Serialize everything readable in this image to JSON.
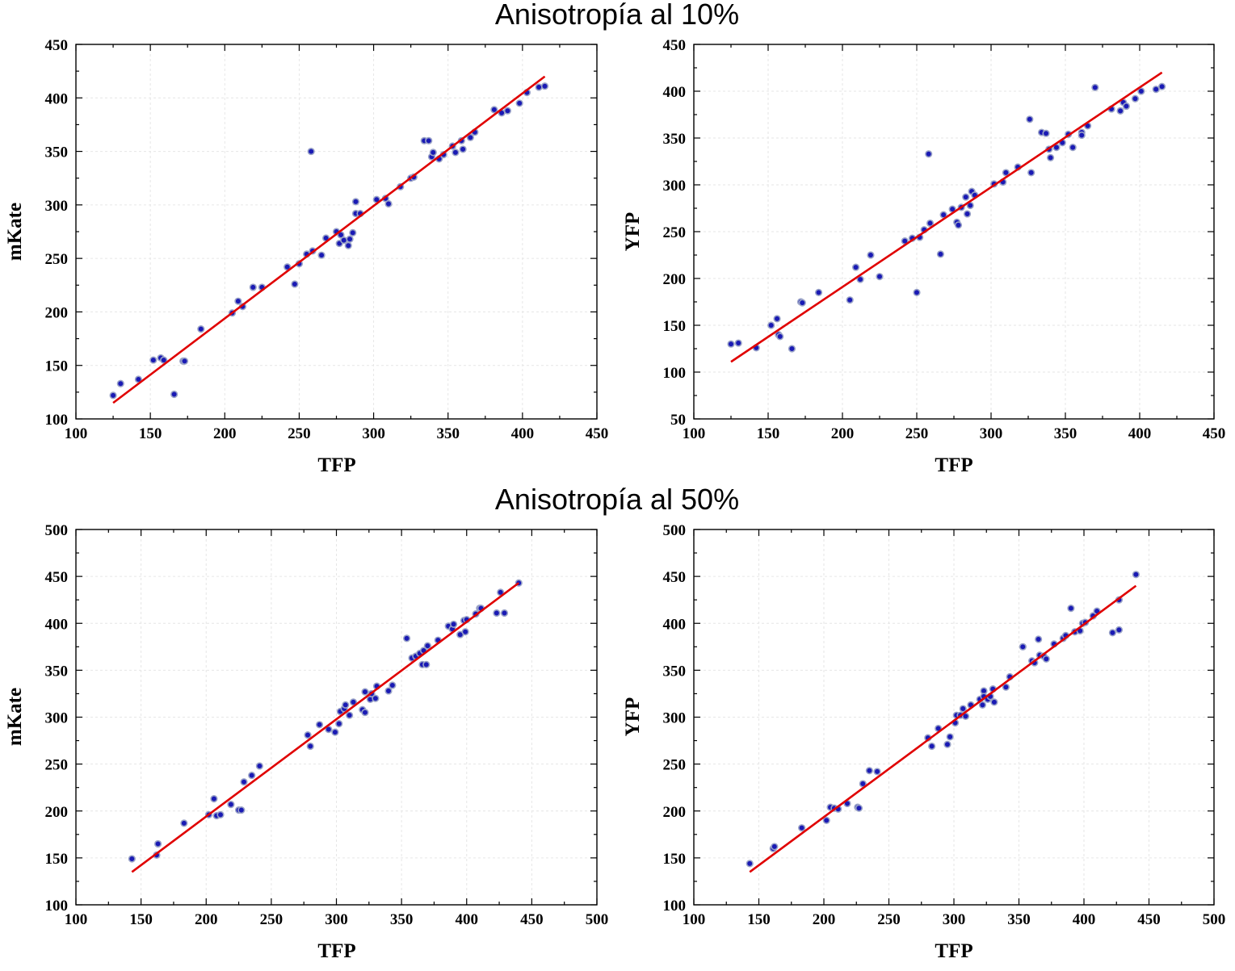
{
  "titles": [
    "Anisotropía al 10%",
    "Anisotropía al 50%"
  ],
  "colors": {
    "points": "#1a1ab4",
    "fit_line": "#e00000",
    "frame": "#000000",
    "grid": "#e6e6e6"
  },
  "chart_data": [
    {
      "type": "scatter",
      "group_title": "Anisotropía al 10%",
      "xlabel": "TFP",
      "ylabel": "mKate",
      "xlim": [
        100,
        450
      ],
      "ylim": [
        100,
        450
      ],
      "xticks": [
        100,
        150,
        200,
        250,
        300,
        350,
        400,
        450
      ],
      "yticks": [
        100,
        150,
        200,
        250,
        300,
        350,
        400,
        450
      ],
      "grid": true,
      "fit_line": {
        "x": [
          125,
          415
        ],
        "y": [
          115,
          420
        ]
      },
      "points": [
        [
          125,
          122
        ],
        [
          130,
          133
        ],
        [
          142,
          137
        ],
        [
          152,
          155
        ],
        [
          157,
          157
        ],
        [
          159,
          155
        ],
        [
          166,
          123
        ],
        [
          172,
          154
        ],
        [
          173,
          154
        ],
        [
          184,
          184
        ],
        [
          205,
          199
        ],
        [
          209,
          210
        ],
        [
          212,
          205
        ],
        [
          219,
          223
        ],
        [
          225,
          223
        ],
        [
          242,
          242
        ],
        [
          247,
          226
        ],
        [
          250,
          245
        ],
        [
          255,
          254
        ],
        [
          258,
          350
        ],
        [
          259,
          257
        ],
        [
          265,
          253
        ],
        [
          268,
          269
        ],
        [
          275,
          275
        ],
        [
          277,
          264
        ],
        [
          278,
          272
        ],
        [
          280,
          267
        ],
        [
          283,
          262
        ],
        [
          284,
          268
        ],
        [
          286,
          274
        ],
        [
          288,
          303
        ],
        [
          288,
          292
        ],
        [
          291,
          292
        ],
        [
          302,
          305
        ],
        [
          308,
          306
        ],
        [
          310,
          301
        ],
        [
          318,
          317
        ],
        [
          325,
          325
        ],
        [
          327,
          326
        ],
        [
          334,
          360
        ],
        [
          337,
          360
        ],
        [
          339,
          345
        ],
        [
          340,
          349
        ],
        [
          344,
          343
        ],
        [
          347,
          347
        ],
        [
          353,
          355
        ],
        [
          355,
          349
        ],
        [
          359,
          360
        ],
        [
          360,
          352
        ],
        [
          365,
          363
        ],
        [
          368,
          368
        ],
        [
          381,
          389
        ],
        [
          386,
          386
        ],
        [
          390,
          388
        ],
        [
          398,
          395
        ],
        [
          403,
          405
        ],
        [
          411,
          410
        ],
        [
          415,
          411
        ]
      ]
    },
    {
      "type": "scatter",
      "group_title": "Anisotropía al 10%",
      "xlabel": "TFP",
      "ylabel": "YFP",
      "xlim": [
        100,
        450
      ],
      "ylim": [
        50,
        450
      ],
      "xticks": [
        100,
        150,
        200,
        250,
        300,
        350,
        400,
        450
      ],
      "yticks": [
        50,
        100,
        150,
        200,
        250,
        300,
        350,
        400,
        450
      ],
      "grid": true,
      "fit_line": {
        "x": [
          125,
          415
        ],
        "y": [
          111,
          420
        ]
      },
      "points": [
        [
          125,
          130
        ],
        [
          130,
          131
        ],
        [
          142,
          126
        ],
        [
          152,
          150
        ],
        [
          156,
          157
        ],
        [
          157,
          140
        ],
        [
          158,
          138
        ],
        [
          166,
          125
        ],
        [
          172,
          175
        ],
        [
          173,
          174
        ],
        [
          184,
          185
        ],
        [
          205,
          177
        ],
        [
          209,
          212
        ],
        [
          212,
          199
        ],
        [
          219,
          225
        ],
        [
          225,
          202
        ],
        [
          242,
          240
        ],
        [
          247,
          243
        ],
        [
          250,
          185
        ],
        [
          252,
          244
        ],
        [
          255,
          252
        ],
        [
          258,
          333
        ],
        [
          259,
          259
        ],
        [
          266,
          226
        ],
        [
          268,
          268
        ],
        [
          274,
          274
        ],
        [
          277,
          260
        ],
        [
          278,
          257
        ],
        [
          280,
          276
        ],
        [
          283,
          287
        ],
        [
          284,
          269
        ],
        [
          286,
          278
        ],
        [
          287,
          293
        ],
        [
          289,
          289
        ],
        [
          302,
          301
        ],
        [
          308,
          303
        ],
        [
          310,
          313
        ],
        [
          318,
          319
        ],
        [
          326,
          370
        ],
        [
          327,
          313
        ],
        [
          334,
          356
        ],
        [
          337,
          355
        ],
        [
          339,
          338
        ],
        [
          340,
          329
        ],
        [
          344,
          340
        ],
        [
          348,
          345
        ],
        [
          352,
          354
        ],
        [
          355,
          340
        ],
        [
          361,
          356
        ],
        [
          361,
          353
        ],
        [
          365,
          363
        ],
        [
          370,
          404
        ],
        [
          381,
          381
        ],
        [
          387,
          379
        ],
        [
          389,
          388
        ],
        [
          391,
          384
        ],
        [
          397,
          392
        ],
        [
          401,
          400
        ],
        [
          411,
          402
        ],
        [
          415,
          405
        ]
      ]
    },
    {
      "type": "scatter",
      "group_title": "Anisotropía al 50%",
      "xlabel": "TFP",
      "ylabel": "mKate",
      "xlim": [
        100,
        500
      ],
      "ylim": [
        100,
        500
      ],
      "xticks": [
        100,
        150,
        200,
        250,
        300,
        350,
        400,
        450,
        500
      ],
      "yticks": [
        100,
        150,
        200,
        250,
        300,
        350,
        400,
        450,
        500
      ],
      "grid": true,
      "fit_line": {
        "x": [
          143,
          440
        ],
        "y": [
          135,
          443
        ]
      },
      "points": [
        [
          143,
          149
        ],
        [
          162,
          153
        ],
        [
          163,
          165
        ],
        [
          183,
          187
        ],
        [
          202,
          196
        ],
        [
          206,
          213
        ],
        [
          208,
          195
        ],
        [
          211,
          196
        ],
        [
          219,
          207
        ],
        [
          225,
          201
        ],
        [
          227,
          201
        ],
        [
          229,
          231
        ],
        [
          235,
          238
        ],
        [
          241,
          248
        ],
        [
          278,
          281
        ],
        [
          280,
          269
        ],
        [
          287,
          292
        ],
        [
          294,
          287
        ],
        [
          299,
          284
        ],
        [
          302,
          293
        ],
        [
          303,
          306
        ],
        [
          306,
          309
        ],
        [
          307,
          313
        ],
        [
          310,
          302
        ],
        [
          313,
          316
        ],
        [
          320,
          308
        ],
        [
          322,
          327
        ],
        [
          322,
          305
        ],
        [
          326,
          319
        ],
        [
          327,
          325
        ],
        [
          330,
          320
        ],
        [
          331,
          333
        ],
        [
          340,
          328
        ],
        [
          343,
          334
        ],
        [
          354,
          384
        ],
        [
          358,
          363
        ],
        [
          361,
          365
        ],
        [
          364,
          368
        ],
        [
          366,
          356
        ],
        [
          367,
          371
        ],
        [
          369,
          356
        ],
        [
          370,
          376
        ],
        [
          378,
          382
        ],
        [
          386,
          397
        ],
        [
          389,
          394
        ],
        [
          390,
          399
        ],
        [
          395,
          388
        ],
        [
          398,
          403
        ],
        [
          399,
          391
        ],
        [
          400,
          404
        ],
        [
          407,
          410
        ],
        [
          410,
          416
        ],
        [
          411,
          416
        ],
        [
          423,
          411
        ],
        [
          426,
          433
        ],
        [
          429,
          411
        ],
        [
          440,
          443
        ]
      ]
    },
    {
      "type": "scatter",
      "group_title": "Anisotropía al 50%",
      "xlabel": "TFP",
      "ylabel": "YFP",
      "xlim": [
        100,
        500
      ],
      "ylim": [
        100,
        500
      ],
      "xticks": [
        100,
        150,
        200,
        250,
        300,
        350,
        400,
        450,
        500
      ],
      "yticks": [
        100,
        150,
        200,
        250,
        300,
        350,
        400,
        450,
        500
      ],
      "grid": true,
      "fit_line": {
        "x": [
          143,
          440
        ],
        "y": [
          135,
          440
        ]
      },
      "points": [
        [
          143,
          144
        ],
        [
          161,
          160
        ],
        [
          162,
          162
        ],
        [
          183,
          182
        ],
        [
          202,
          190
        ],
        [
          205,
          204
        ],
        [
          208,
          203
        ],
        [
          211,
          202
        ],
        [
          218,
          208
        ],
        [
          226,
          204
        ],
        [
          227,
          203
        ],
        [
          230,
          229
        ],
        [
          235,
          243
        ],
        [
          241,
          242
        ],
        [
          280,
          278
        ],
        [
          283,
          269
        ],
        [
          288,
          288
        ],
        [
          295,
          271
        ],
        [
          297,
          279
        ],
        [
          301,
          294
        ],
        [
          302,
          302
        ],
        [
          305,
          302
        ],
        [
          307,
          309
        ],
        [
          309,
          301
        ],
        [
          313,
          313
        ],
        [
          320,
          319
        ],
        [
          322,
          313
        ],
        [
          323,
          328
        ],
        [
          323,
          322
        ],
        [
          326,
          319
        ],
        [
          328,
          322
        ],
        [
          330,
          330
        ],
        [
          331,
          316
        ],
        [
          340,
          332
        ],
        [
          343,
          343
        ],
        [
          353,
          375
        ],
        [
          360,
          360
        ],
        [
          362,
          358
        ],
        [
          365,
          383
        ],
        [
          366,
          366
        ],
        [
          369,
          365
        ],
        [
          371,
          362
        ],
        [
          377,
          378
        ],
        [
          384,
          384
        ],
        [
          386,
          387
        ],
        [
          390,
          416
        ],
        [
          393,
          391
        ],
        [
          397,
          392
        ],
        [
          399,
          400
        ],
        [
          401,
          401
        ],
        [
          407,
          408
        ],
        [
          410,
          413
        ],
        [
          422,
          390
        ],
        [
          427,
          425
        ],
        [
          427,
          393
        ],
        [
          440,
          452
        ]
      ]
    }
  ]
}
